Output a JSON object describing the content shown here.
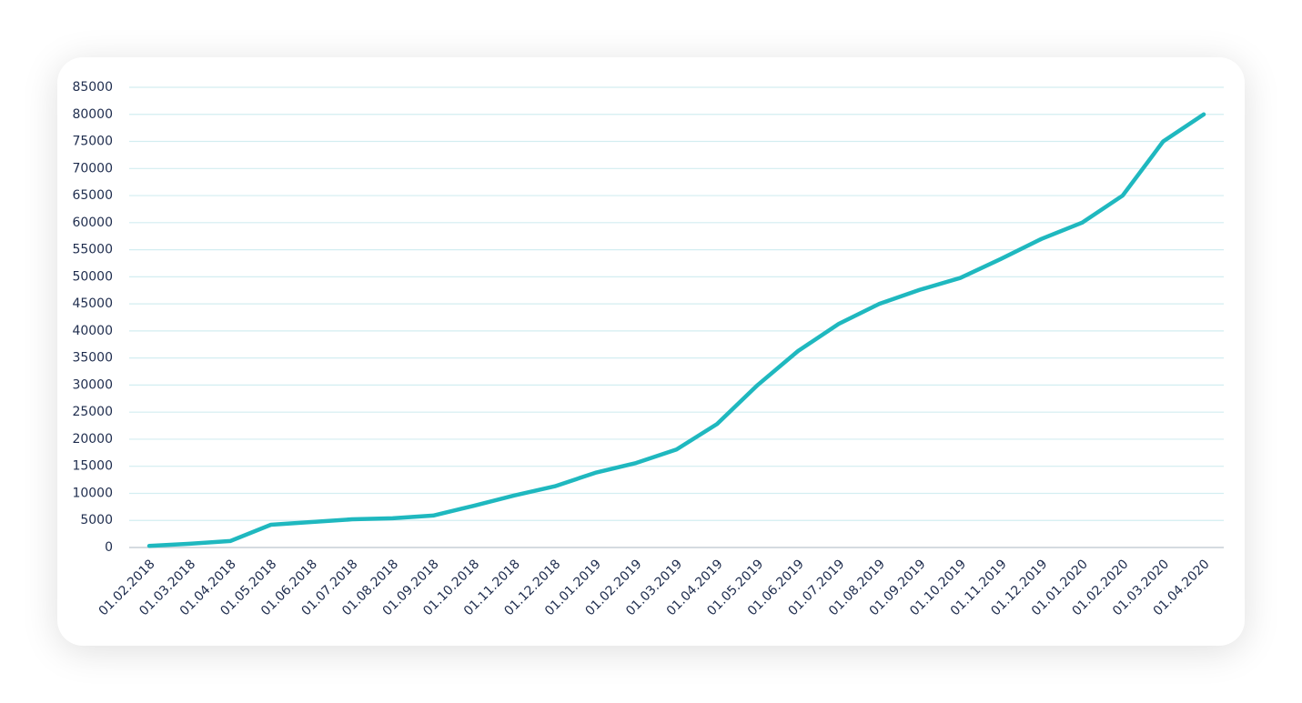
{
  "chart_data": {
    "type": "line",
    "categories": [
      "01.02.2018",
      "01.03.2018",
      "01.04.2018",
      "01.05.2018",
      "01.06.2018",
      "01.07.2018",
      "01.08.2018",
      "01.09.2018",
      "01.10.2018",
      "01.11.2018",
      "01.12.2018",
      "01.01.2019",
      "01.02.2019",
      "01.03.2019",
      "01.04.2019",
      "01.05.2019",
      "01.06.2019",
      "01.07.2019",
      "01.08.2019",
      "01.09.2019",
      "01.10.2019",
      "01.11.2019",
      "01.12.2019",
      "01.01.2020",
      "01.02.2020",
      "01.03.2020",
      "01.04.2020"
    ],
    "values": [
      300,
      700,
      1200,
      4200,
      4700,
      5200,
      5400,
      5900,
      7700,
      9600,
      11300,
      13800,
      15600,
      18100,
      22800,
      30000,
      36300,
      41300,
      45000,
      47600,
      49800,
      53300,
      57000,
      60000,
      65000,
      75000,
      80000
    ],
    "color": "#1fb8bf",
    "ylim": [
      0,
      85000
    ],
    "yticks": [
      0,
      5000,
      10000,
      15000,
      20000,
      25000,
      30000,
      35000,
      40000,
      45000,
      50000,
      55000,
      60000,
      65000,
      70000,
      75000,
      80000,
      85000
    ],
    "grid": true
  }
}
